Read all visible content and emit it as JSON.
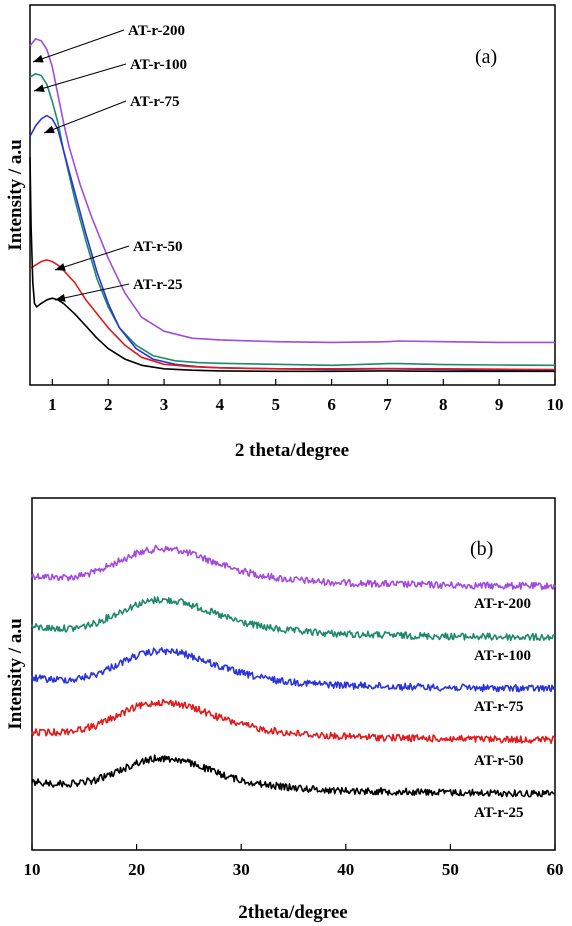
{
  "chart_data": [
    {
      "type": "line",
      "panel_label": "(a)",
      "xlabel": "2 theta/degree",
      "ylabel": "Intensity / a.u",
      "xlim": [
        0.6,
        10
      ],
      "ylim": [
        0,
        1
      ],
      "x_ticks": [
        "1",
        "2",
        "3",
        "4",
        "5",
        "6",
        "7",
        "8",
        "9",
        "10"
      ],
      "grid": false,
      "y_tick_labels": false,
      "series": [
        {
          "name": "AT-r-200",
          "color": "#a24bdc",
          "x": [
            0.6,
            0.7,
            0.8,
            0.9,
            1.0,
            1.1,
            1.2,
            1.3,
            1.5,
            1.7,
            2.0,
            2.3,
            2.6,
            3.0,
            3.5,
            4.0,
            5.0,
            6.0,
            7.0,
            7.2,
            8.0,
            9.0,
            10.0
          ],
          "y": [
            0.94,
            0.96,
            0.955,
            0.93,
            0.88,
            0.8,
            0.72,
            0.65,
            0.54,
            0.45,
            0.33,
            0.23,
            0.16,
            0.12,
            0.1,
            0.095,
            0.09,
            0.088,
            0.09,
            0.092,
            0.09,
            0.088,
            0.088
          ]
        },
        {
          "name": "AT-r-100",
          "color": "#1e8a6a",
          "x": [
            0.6,
            0.7,
            0.8,
            0.9,
            1.0,
            1.1,
            1.2,
            1.4,
            1.6,
            1.8,
            2.0,
            2.2,
            2.5,
            2.8,
            3.2,
            3.6,
            4.0,
            5.0,
            6.0,
            7.0,
            7.2,
            8.0,
            9.0,
            10.0
          ],
          "y": [
            0.85,
            0.86,
            0.855,
            0.83,
            0.78,
            0.72,
            0.64,
            0.5,
            0.38,
            0.27,
            0.19,
            0.13,
            0.08,
            0.05,
            0.035,
            0.03,
            0.028,
            0.025,
            0.022,
            0.027,
            0.027,
            0.024,
            0.023,
            0.022
          ]
        },
        {
          "name": "AT-r-75",
          "color": "#2a34d8",
          "x": [
            0.6,
            0.7,
            0.8,
            0.9,
            1.0,
            1.1,
            1.2,
            1.4,
            1.6,
            1.8,
            2.0,
            2.2,
            2.5,
            2.8,
            3.2,
            3.6,
            4.0,
            5.0,
            6.0,
            7.0,
            8.0,
            9.0,
            10.0
          ],
          "y": [
            0.68,
            0.71,
            0.73,
            0.74,
            0.73,
            0.7,
            0.64,
            0.52,
            0.4,
            0.29,
            0.2,
            0.13,
            0.07,
            0.04,
            0.025,
            0.018,
            0.015,
            0.012,
            0.01,
            0.012,
            0.01,
            0.009,
            0.008
          ]
        },
        {
          "name": "AT-r-50",
          "color": "#e01b1b",
          "x": [
            0.6,
            0.7,
            0.8,
            0.9,
            1.0,
            1.1,
            1.2,
            1.4,
            1.6,
            1.8,
            2.0,
            2.3,
            2.6,
            3.0,
            3.5,
            4.0,
            5.0,
            6.0,
            7.0,
            8.0,
            9.0,
            10.0
          ],
          "y": [
            0.3,
            0.31,
            0.32,
            0.325,
            0.32,
            0.31,
            0.295,
            0.26,
            0.21,
            0.17,
            0.13,
            0.08,
            0.045,
            0.025,
            0.018,
            0.015,
            0.012,
            0.012,
            0.013,
            0.012,
            0.011,
            0.01
          ]
        },
        {
          "name": "AT-r-25",
          "color": "#000000",
          "x": [
            0.6,
            0.62,
            0.65,
            0.68,
            0.72,
            0.8,
            0.9,
            1.0,
            1.1,
            1.2,
            1.4,
            1.6,
            1.8,
            2.0,
            2.3,
            2.6,
            3.0,
            3.5,
            4.0,
            5.0,
            6.0,
            7.0,
            8.0,
            9.0,
            10.0
          ],
          "y": [
            0.62,
            0.42,
            0.26,
            0.2,
            0.19,
            0.2,
            0.21,
            0.215,
            0.21,
            0.2,
            0.17,
            0.135,
            0.1,
            0.07,
            0.04,
            0.022,
            0.012,
            0.008,
            0.006,
            0.005,
            0.005,
            0.006,
            0.005,
            0.005,
            0.005
          ]
        }
      ]
    },
    {
      "type": "line",
      "panel_label": "(b)",
      "xlabel": "2theta/degree",
      "ylabel": "Intensity / a.u",
      "xlim": [
        10,
        60
      ],
      "ylim": [
        0,
        1
      ],
      "x_ticks": [
        "10",
        "20",
        "30",
        "40",
        "50",
        "60"
      ],
      "grid": false,
      "y_tick_labels": false,
      "note_offsets": "curves are vertically stacked",
      "series": [
        {
          "name": "AT-r-200",
          "color": "#a24bdc",
          "x": [
            10,
            12,
            14,
            16,
            18,
            20,
            22,
            24,
            26,
            28,
            30,
            32,
            34,
            36,
            38,
            40,
            45,
            50,
            55,
            60
          ],
          "y": [
            0.82,
            0.815,
            0.815,
            0.83,
            0.86,
            0.89,
            0.905,
            0.9,
            0.88,
            0.855,
            0.835,
            0.82,
            0.81,
            0.805,
            0.8,
            0.797,
            0.793,
            0.79,
            0.788,
            0.787
          ]
        },
        {
          "name": "AT-r-100",
          "color": "#1e8a6a",
          "x": [
            10,
            12,
            14,
            16,
            18,
            20,
            22,
            24,
            26,
            28,
            30,
            32,
            34,
            36,
            38,
            40,
            45,
            50,
            55,
            60
          ],
          "y": [
            0.66,
            0.655,
            0.655,
            0.67,
            0.7,
            0.73,
            0.745,
            0.74,
            0.72,
            0.695,
            0.675,
            0.66,
            0.65,
            0.645,
            0.64,
            0.637,
            0.633,
            0.63,
            0.628,
            0.627
          ]
        },
        {
          "name": "AT-r-75",
          "color": "#2a34d8",
          "x": [
            10,
            12,
            14,
            16,
            18,
            20,
            22,
            24,
            26,
            28,
            30,
            32,
            34,
            36,
            38,
            40,
            45,
            50,
            55,
            60
          ],
          "y": [
            0.5,
            0.495,
            0.495,
            0.51,
            0.54,
            0.57,
            0.585,
            0.58,
            0.56,
            0.535,
            0.515,
            0.5,
            0.49,
            0.485,
            0.48,
            0.477,
            0.473,
            0.47,
            0.468,
            0.467
          ]
        },
        {
          "name": "AT-r-50",
          "color": "#e01b1b",
          "x": [
            10,
            12,
            14,
            16,
            18,
            20,
            22,
            24,
            26,
            28,
            30,
            32,
            34,
            36,
            38,
            40,
            45,
            50,
            55,
            60
          ],
          "y": [
            0.33,
            0.33,
            0.335,
            0.35,
            0.38,
            0.41,
            0.425,
            0.42,
            0.4,
            0.375,
            0.355,
            0.34,
            0.33,
            0.325,
            0.32,
            0.317,
            0.313,
            0.31,
            0.308,
            0.307
          ]
        },
        {
          "name": "AT-r-25",
          "color": "#000000",
          "x": [
            10,
            12,
            14,
            16,
            18,
            20,
            22,
            24,
            26,
            28,
            30,
            32,
            34,
            36,
            38,
            40,
            45,
            50,
            55,
            60
          ],
          "y": [
            0.175,
            0.17,
            0.17,
            0.18,
            0.205,
            0.235,
            0.25,
            0.245,
            0.225,
            0.2,
            0.18,
            0.168,
            0.16,
            0.155,
            0.15,
            0.148,
            0.145,
            0.142,
            0.14,
            0.139
          ]
        }
      ]
    }
  ]
}
